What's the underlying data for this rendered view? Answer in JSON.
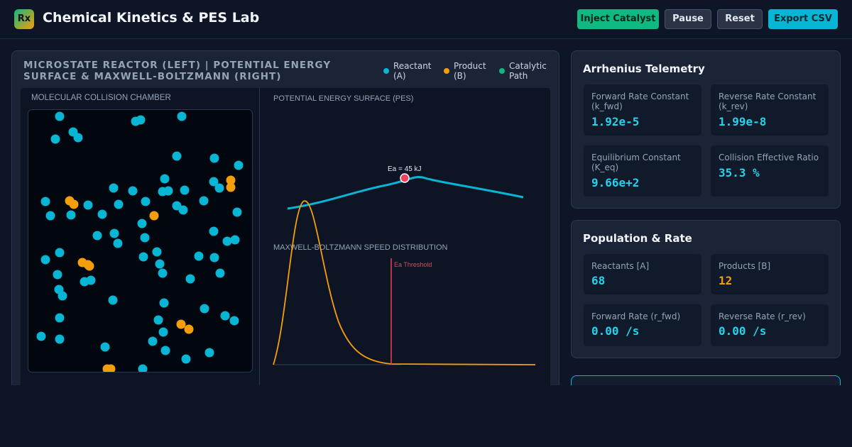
{
  "header": {
    "logo_text": "Rx",
    "title": "Chemical Kinetics & PES Lab",
    "buttons": {
      "inject": "Inject Catalyst",
      "pause": "Pause",
      "reset": "Reset",
      "export": "Export CSV"
    }
  },
  "left_panel": {
    "heading": "Microstate Reactor (Left) | Potential Energy Surface & Maxwell-Boltzmann (Right)",
    "legend": [
      {
        "label": "Reactant (A)",
        "color": "#06b6d4"
      },
      {
        "label": "Product (B)",
        "color": "#f59e0b"
      },
      {
        "label": "Catalytic Path",
        "color": "#10b981"
      }
    ],
    "chamber_label": "MOLECULAR COLLISION CHAMBER",
    "pes_label": "POTENTIAL ENERGY SURFACE (PES)",
    "mb_label": "MAXWELL-BOLTZMANN SPEED DISTRIBUTION",
    "ea_label": "Ea = 45 kJ",
    "threshold_label": "Ea Threshold"
  },
  "arrhenius": {
    "title": "Arrhenius Telemetry",
    "tiles": [
      {
        "label": "Forward Rate Constant (k_fwd)",
        "value": "1.92e-5"
      },
      {
        "label": "Reverse Rate Constant (k_rev)",
        "value": "1.99e-8"
      },
      {
        "label": "Equilibrium Constant (K_eq)",
        "value": "9.66e+2"
      },
      {
        "label": "Collision Effective Ratio",
        "value": "35.3 %"
      }
    ]
  },
  "population": {
    "title": "Population & Rate",
    "tiles": [
      {
        "label": "Reactants [A]",
        "value": "68"
      },
      {
        "label": "Products [B]",
        "value": "12"
      },
      {
        "label": "Forward Rate (r_fwd)",
        "value": "0.00 /s"
      },
      {
        "label": "Reverse Rate (r_rev)",
        "value": "0.00 /s"
      }
    ]
  },
  "colors": {
    "reactant": "#06b6d4",
    "product": "#f59e0b",
    "catalytic": "#10b981",
    "threshold": "#f43f5e"
  }
}
